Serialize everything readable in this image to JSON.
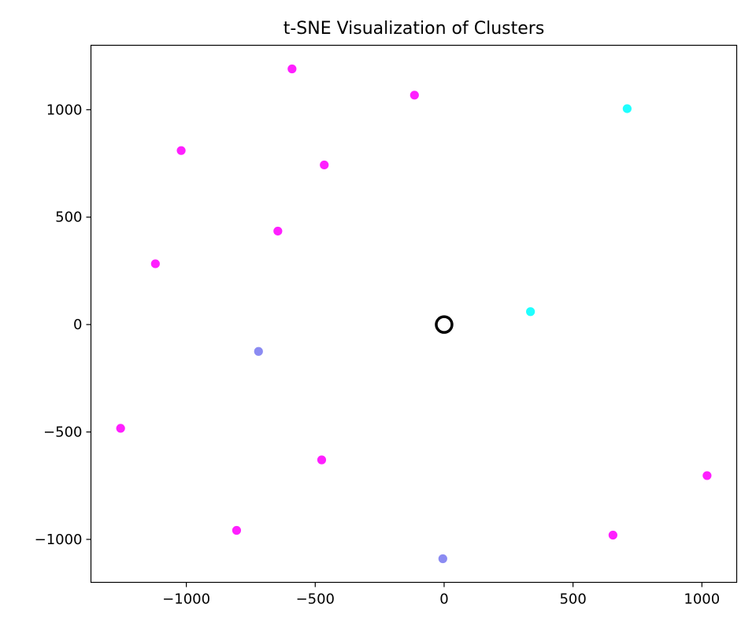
{
  "chart_data": {
    "type": "scatter",
    "title": "t-SNE Visualization of Clusters",
    "xlabel": "",
    "ylabel": "",
    "xlim": [
      -1370,
      1135
    ],
    "ylim": [
      -1200,
      1300
    ],
    "xticks": [
      -1000,
      -500,
      0,
      500,
      1000
    ],
    "yticks": [
      -1000,
      -500,
      0,
      500,
      1000
    ],
    "xtick_labels": [
      "−1000",
      "−500",
      "0",
      "500",
      "1000"
    ],
    "ytick_labels": [
      "−1000",
      "−500",
      "0",
      "500",
      "1000"
    ],
    "grid": false,
    "points": [
      {
        "x": -590,
        "y": 1190,
        "color": "#ff00ff"
      },
      {
        "x": -115,
        "y": 1068,
        "color": "#ff00ff"
      },
      {
        "x": 710,
        "y": 1005,
        "color": "#00ffff"
      },
      {
        "x": -1020,
        "y": 810,
        "color": "#ff00ff"
      },
      {
        "x": -465,
        "y": 743,
        "color": "#ff00ff"
      },
      {
        "x": -645,
        "y": 435,
        "color": "#ff00ff"
      },
      {
        "x": -1120,
        "y": 283,
        "color": "#ff00ff"
      },
      {
        "x": 335,
        "y": 60,
        "color": "#00ffff"
      },
      {
        "x": -720,
        "y": -125,
        "color": "#7b7bf0"
      },
      {
        "x": -1255,
        "y": -483,
        "color": "#ff00ff"
      },
      {
        "x": -475,
        "y": -630,
        "color": "#ff00ff"
      },
      {
        "x": 1020,
        "y": -703,
        "color": "#ff00ff"
      },
      {
        "x": -805,
        "y": -958,
        "color": "#ff00ff"
      },
      {
        "x": 655,
        "y": -980,
        "color": "#ff00ff"
      },
      {
        "x": -5,
        "y": -1090,
        "color": "#7b7bf0"
      }
    ],
    "highlight": {
      "x": 0,
      "y": 0,
      "style": "hollow-ring",
      "color": "#000000"
    }
  }
}
